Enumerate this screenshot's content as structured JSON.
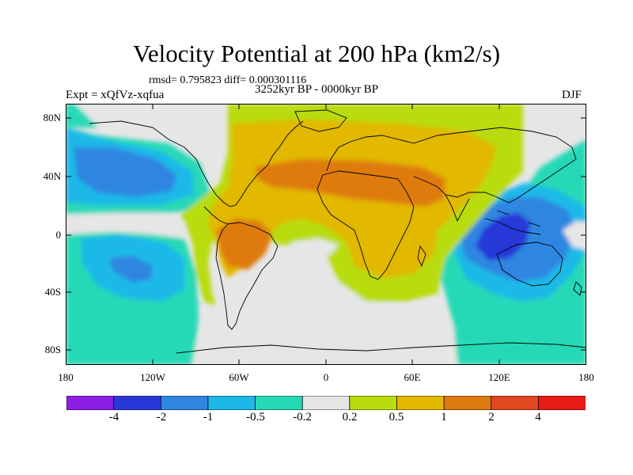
{
  "title": "Velocity Potential at 200 hPa (km2/s)",
  "stats": "rmsd= 0.795823 diff= 0.000301116",
  "period": "3252kyr BP - 0000kyr BP",
  "experiment": "Expt = xQfVz-xqfua",
  "season": "DJF",
  "map": {
    "lat_labels": [
      "80N",
      "40N",
      "0",
      "40S",
      "80S"
    ],
    "lon_labels": [
      "180",
      "120W",
      "60W",
      "0",
      "60E",
      "120E",
      "180"
    ]
  },
  "colorbar": {
    "labels": [
      "-4",
      "-2",
      "-1",
      "-0.5",
      "-0.2",
      "0.2",
      "0.5",
      "1",
      "2",
      "4"
    ],
    "colors": [
      "#8c1ee6",
      "#2838d8",
      "#2f86e0",
      "#1cb9e8",
      "#25d9b6",
      "#e6e6e6",
      "#b8dc10",
      "#e2b800",
      "#df7a10",
      "#e24820",
      "#e81a14"
    ]
  }
}
